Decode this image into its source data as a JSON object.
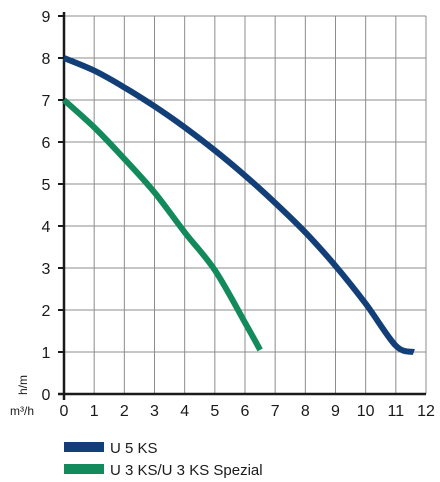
{
  "chart_data": {
    "type": "line",
    "title": "",
    "xlabel": "m³/h",
    "ylabel": "h/m",
    "xlim": [
      0,
      12
    ],
    "ylim": [
      0,
      9
    ],
    "xticks": [
      "0",
      "1",
      "2",
      "3",
      "4",
      "5",
      "6",
      "7",
      "8",
      "9",
      "10",
      "11",
      "12"
    ],
    "yticks": [
      "0",
      "1",
      "2",
      "3",
      "4",
      "5",
      "6",
      "7",
      "8",
      "9"
    ],
    "grid": true,
    "legend_position": "bottom",
    "series": [
      {
        "name": "U 5 KS",
        "color": "#123f78",
        "x": [
          0,
          1,
          2,
          3,
          4,
          5,
          6,
          7,
          8,
          9,
          10,
          11,
          11.6
        ],
        "y": [
          8.0,
          7.7,
          7.3,
          6.85,
          6.35,
          5.8,
          5.2,
          4.55,
          3.85,
          3.05,
          2.15,
          1.15,
          1.0
        ]
      },
      {
        "name": "U 3 KS/U 3 KS Spezial",
        "color": "#138a5b",
        "x": [
          0,
          1,
          2,
          3,
          4,
          5,
          6,
          6.5
        ],
        "y": [
          7.0,
          6.35,
          5.6,
          4.8,
          3.85,
          2.95,
          1.7,
          1.05
        ]
      }
    ]
  }
}
